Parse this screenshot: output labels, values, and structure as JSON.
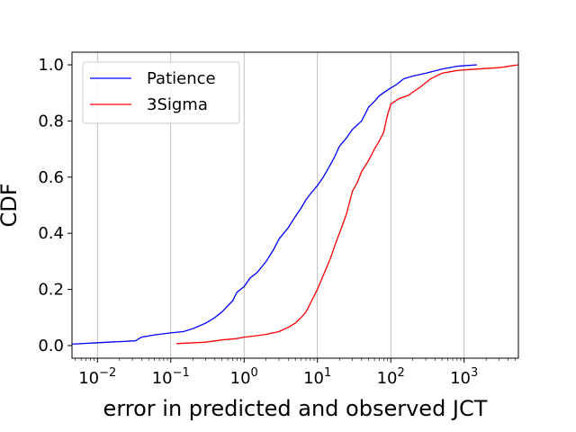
{
  "chart_data": {
    "type": "line",
    "xlabel": "error in predicted and observed JCT",
    "ylabel": "CDF",
    "x_scale": "log",
    "xlim": [
      0.0045,
      5500
    ],
    "ylim": [
      -0.045,
      1.045
    ],
    "x_ticks": [
      {
        "value": 0.01,
        "base": "10",
        "exp": "−2"
      },
      {
        "value": 0.1,
        "base": "10",
        "exp": "−1"
      },
      {
        "value": 1,
        "base": "10",
        "exp": "0"
      },
      {
        "value": 10,
        "base": "10",
        "exp": "1"
      },
      {
        "value": 100,
        "base": "10",
        "exp": "2"
      },
      {
        "value": 1000,
        "base": "10",
        "exp": "3"
      }
    ],
    "y_ticks": [
      {
        "value": 0.0,
        "label": "0.0"
      },
      {
        "value": 0.2,
        "label": "0.2"
      },
      {
        "value": 0.4,
        "label": "0.4"
      },
      {
        "value": 0.6,
        "label": "0.6"
      },
      {
        "value": 0.8,
        "label": "0.8"
      },
      {
        "value": 1.0,
        "label": "1.0"
      }
    ],
    "grid": "x-major",
    "legend_position": "top-left",
    "series": [
      {
        "name": "Patience",
        "color": "#0000ff",
        "points": [
          [
            0.0045,
            0.005
          ],
          [
            0.01,
            0.01
          ],
          [
            0.02,
            0.014
          ],
          [
            0.033,
            0.017
          ],
          [
            0.04,
            0.03
          ],
          [
            0.06,
            0.038
          ],
          [
            0.1,
            0.045
          ],
          [
            0.15,
            0.05
          ],
          [
            0.2,
            0.06
          ],
          [
            0.3,
            0.08
          ],
          [
            0.4,
            0.1
          ],
          [
            0.5,
            0.12
          ],
          [
            0.7,
            0.16
          ],
          [
            0.8,
            0.19
          ],
          [
            1.0,
            0.21
          ],
          [
            1.2,
            0.24
          ],
          [
            1.5,
            0.26
          ],
          [
            2.0,
            0.3
          ],
          [
            2.5,
            0.34
          ],
          [
            3.0,
            0.38
          ],
          [
            4.0,
            0.42
          ],
          [
            5.0,
            0.46
          ],
          [
            6.0,
            0.49
          ],
          [
            7.0,
            0.52
          ],
          [
            8.0,
            0.54
          ],
          [
            10,
            0.57
          ],
          [
            12,
            0.6
          ],
          [
            14,
            0.63
          ],
          [
            17,
            0.67
          ],
          [
            20,
            0.71
          ],
          [
            25,
            0.74
          ],
          [
            30,
            0.77
          ],
          [
            40,
            0.8
          ],
          [
            50,
            0.85
          ],
          [
            60,
            0.87
          ],
          [
            70,
            0.89
          ],
          [
            90,
            0.91
          ],
          [
            120,
            0.93
          ],
          [
            150,
            0.95
          ],
          [
            200,
            0.96
          ],
          [
            300,
            0.97
          ],
          [
            500,
            0.985
          ],
          [
            800,
            0.995
          ],
          [
            1500,
            1.0
          ]
        ]
      },
      {
        "name": "3Sigma",
        "color": "#ff0000",
        "points": [
          [
            0.12,
            0.007
          ],
          [
            0.3,
            0.012
          ],
          [
            0.5,
            0.02
          ],
          [
            0.8,
            0.025
          ],
          [
            1.0,
            0.03
          ],
          [
            1.5,
            0.035
          ],
          [
            2.0,
            0.04
          ],
          [
            2.5,
            0.045
          ],
          [
            3.0,
            0.05
          ],
          [
            4.0,
            0.065
          ],
          [
            5.0,
            0.08
          ],
          [
            6.0,
            0.1
          ],
          [
            7.0,
            0.12
          ],
          [
            8.0,
            0.15
          ],
          [
            10,
            0.2
          ],
          [
            12,
            0.25
          ],
          [
            15,
            0.31
          ],
          [
            18,
            0.37
          ],
          [
            20,
            0.4
          ],
          [
            25,
            0.47
          ],
          [
            30,
            0.55
          ],
          [
            35,
            0.58
          ],
          [
            40,
            0.62
          ],
          [
            50,
            0.66
          ],
          [
            60,
            0.7
          ],
          [
            70,
            0.73
          ],
          [
            80,
            0.76
          ],
          [
            90,
            0.82
          ],
          [
            100,
            0.86
          ],
          [
            130,
            0.88
          ],
          [
            170,
            0.89
          ],
          [
            250,
            0.92
          ],
          [
            350,
            0.95
          ],
          [
            500,
            0.97
          ],
          [
            800,
            0.98
          ],
          [
            1500,
            0.985
          ],
          [
            3000,
            0.99
          ],
          [
            5500,
            1.0
          ]
        ]
      }
    ]
  }
}
